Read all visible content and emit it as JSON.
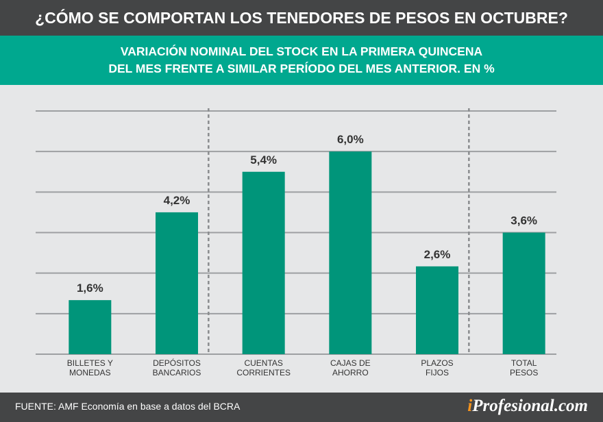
{
  "title": "¿CÓMO SE COMPORTAN LOS TENEDORES DE PESOS EN OCTUBRE?",
  "subtitle_lines": [
    "VARIACIÓN NOMINAL DEL STOCK EN LA PRIMERA QUINCENA",
    "DEL MES FRENTE A SIMILAR PERÍODO DEL MES ANTERIOR. EN %"
  ],
  "footer": {
    "source": "FUENTE: AMF Economía en base a datos del BCRA",
    "logo_i": "i",
    "logo_rest": "Profesional.com"
  },
  "colors": {
    "bar": "#00957a",
    "header": "#444546",
    "band": "#00a88f",
    "background": "#e6e7e8",
    "logo_accent": "#f7941d"
  },
  "chart_data": {
    "type": "bar",
    "categories": [
      [
        "BILLETES Y",
        "MONEDAS"
      ],
      [
        "DEPÓSITOS",
        "BANCARIOS"
      ],
      [
        "CUENTAS",
        "CORRIENTES"
      ],
      [
        "CAJAS DE",
        "AHORRO"
      ],
      [
        "PLAZOS",
        "FIJOS"
      ],
      [
        "TOTAL",
        "PESOS"
      ]
    ],
    "values": [
      1.6,
      4.2,
      5.4,
      6.0,
      2.6,
      3.6
    ],
    "data_labels": [
      "1,6%",
      "4,2%",
      "5,4%",
      "6,0%",
      "2,6%",
      "3,6%"
    ],
    "ylim": [
      0,
      7.2
    ],
    "grid": true,
    "group_separators_after": [
      1,
      4
    ]
  }
}
